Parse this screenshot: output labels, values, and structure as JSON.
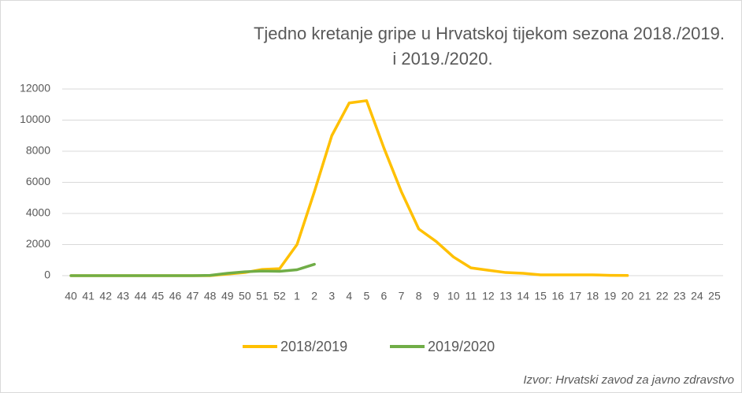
{
  "chart_data": {
    "type": "line",
    "title": [
      "Tjedno kretanje gripe u Hrvatskoj tijekom sezona 2018./2019.",
      "i 2019./2020."
    ],
    "categories": [
      "40",
      "41",
      "42",
      "43",
      "44",
      "45",
      "46",
      "47",
      "48",
      "49",
      "50",
      "51",
      "52",
      "1",
      "2",
      "3",
      "4",
      "5",
      "6",
      "7",
      "8",
      "9",
      "10",
      "11",
      "12",
      "13",
      "14",
      "15",
      "16",
      "17",
      "18",
      "19",
      "20",
      "21",
      "22",
      "23",
      "24",
      "25"
    ],
    "series": [
      {
        "name": "2018/2019",
        "color": "#FFC000",
        "values": [
          0,
          0,
          0,
          0,
          0,
          0,
          0,
          0,
          0,
          100,
          200,
          400,
          450,
          2000,
          5400,
          9000,
          11100,
          11250,
          8200,
          5400,
          3000,
          2200,
          1200,
          500,
          350,
          200,
          150,
          50,
          50,
          50,
          50,
          20,
          10,
          null,
          null,
          null,
          null,
          null
        ]
      },
      {
        "name": "2019/2020",
        "color": "#70AD47",
        "values": [
          0,
          0,
          0,
          0,
          0,
          0,
          0,
          0,
          20,
          150,
          250,
          300,
          280,
          380,
          730,
          null,
          null,
          null,
          null,
          null,
          null,
          null,
          null,
          null,
          null,
          null,
          null,
          null,
          null,
          null,
          null,
          null,
          null,
          null,
          null,
          null,
          null,
          null
        ]
      }
    ],
    "ylim": [
      0,
      12000
    ],
    "yticks": [
      0,
      2000,
      4000,
      6000,
      8000,
      10000,
      12000
    ],
    "grid": true,
    "legend": "bottom",
    "source": "Izvor: Hrvatski zavod za javno zdravstvo"
  }
}
